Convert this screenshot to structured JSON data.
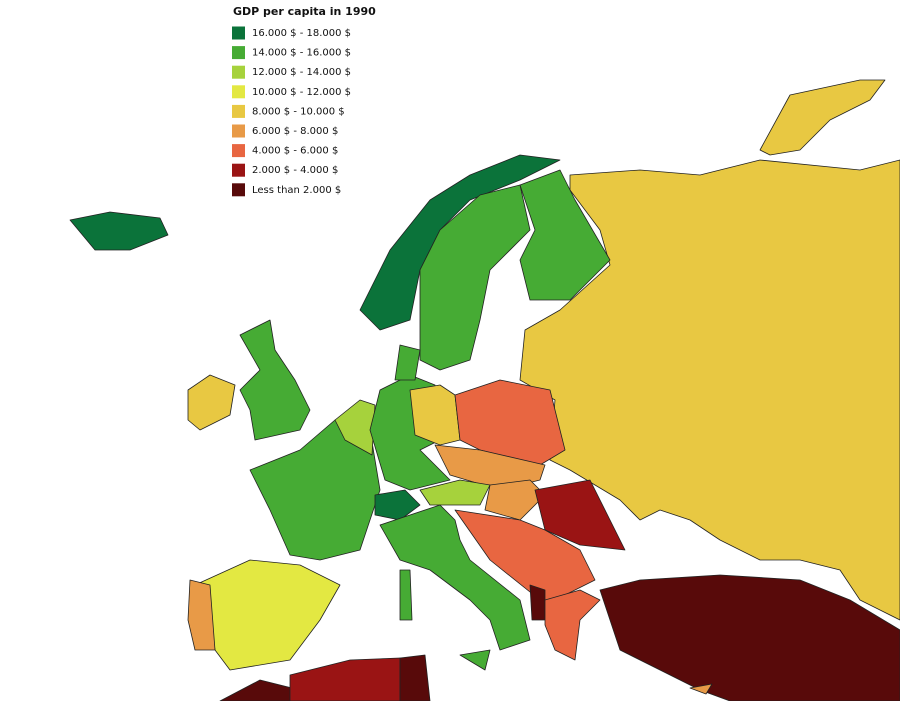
{
  "title": "GDP per capita in 1990",
  "legend": [
    {
      "label": "16.000 $ - 18.000 $",
      "color": "#0b733a"
    },
    {
      "label": "14.000 $ - 16.000 $",
      "color": "#46ab34"
    },
    {
      "label": "12.000 $ - 14.000 $",
      "color": "#a6d23c"
    },
    {
      "label": "10.000 $ - 12.000 $",
      "color": "#e3e842"
    },
    {
      "label": "8.000 $ - 10.000 $",
      "color": "#e8c842"
    },
    {
      "label": "6.000 $ - 8.000 $",
      "color": "#e89a47"
    },
    {
      "label": "4.000 $ - 6.000 $",
      "color": "#e86641"
    },
    {
      "label": "2.000 $ - 4.000 $",
      "color": "#9a1414"
    },
    {
      "label": "Less than 2.000 $",
      "color": "#580a0a"
    }
  ]
}
